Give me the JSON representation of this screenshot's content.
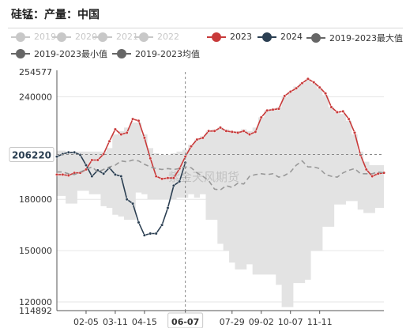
{
  "title": "硅锰：产量：中国",
  "watermark": "紫金天风期货",
  "legend": [
    {
      "label": "2019",
      "color": "#c8c8c8",
      "line": "#c8c8c8",
      "off": true
    },
    {
      "label": "2020",
      "color": "#c8c8c8",
      "line": "#c8c8c8",
      "off": true
    },
    {
      "label": "2021",
      "color": "#c8c8c8",
      "line": "#c8c8c8",
      "off": true
    },
    {
      "label": "2022",
      "color": "#c8c8c8",
      "line": "#c8c8c8",
      "off": true
    },
    {
      "label": "2023",
      "color": "#c83a3a",
      "line": "#c83a3a",
      "off": false
    },
    {
      "label": "2024",
      "color": "#2b3f52",
      "line": "#2b3f52",
      "off": false
    },
    {
      "label": "2019-2023最大值",
      "color": "#666666",
      "line": "#666666",
      "off": false
    },
    {
      "label": "2019-2023最小值",
      "color": "#666666",
      "line": "#666666",
      "off": false
    },
    {
      "label": "2019-2023均值",
      "color": "#666666",
      "line": "#666666",
      "off": false
    }
  ],
  "chart_data": {
    "type": "line",
    "y_min": 114892,
    "y_max": 254577,
    "y_ticks": [
      120000,
      150000,
      180000,
      240000
    ],
    "y_special_labels": [
      "254577",
      "114892"
    ],
    "x_ticks": [
      "02-05",
      "03-11",
      "04-15",
      "06-07",
      "07-29",
      "09-02",
      "10-07",
      "11-11"
    ],
    "x_tick_weeks": [
      5,
      10,
      15,
      22,
      30,
      35,
      40,
      45
    ],
    "x_highlight": "06-07",
    "x_crosshair_week": 22,
    "crosshair_value_label": "206220",
    "crosshair_value": 206220,
    "weeks": 52,
    "series": [
      {
        "name": "2023",
        "color": "#c83a3a",
        "values": [
          194500,
          194500,
          194000,
          195500,
          195500,
          197500,
          203000,
          203000,
          206500,
          214000,
          221000,
          218000,
          219000,
          227000,
          226000,
          216000,
          204000,
          193500,
          192000,
          192500,
          192500,
          198000,
          205000,
          211000,
          215000,
          216000,
          220000,
          220000,
          222000,
          220000,
          219500,
          219000,
          220000,
          218000,
          219500,
          228000,
          232000,
          232500,
          233000,
          240500,
          243000,
          245000,
          248000,
          250500,
          248500,
          245500,
          242000,
          234000,
          231000,
          231500,
          227000,
          219000,
          206000,
          197500,
          193500,
          195000,
          195500
        ]
      },
      {
        "name": "2024",
        "color": "#2b3f52",
        "values": [
          205000,
          206500,
          207500,
          207500,
          206000,
          200000,
          193500,
          197000,
          195000,
          198500,
          194500,
          193500,
          180000,
          177500,
          166500,
          159000,
          160000,
          160000,
          165000,
          175000,
          188000,
          190500,
          201500
        ]
      },
      {
        "name": "2019-2023均值",
        "color": "#999999",
        "values": [
          196000,
          196000,
          195000,
          194500,
          196000,
          197500,
          199000,
          196000,
          197500,
          199000,
          200000,
          202500,
          202000,
          203000,
          202500,
          200500,
          199000,
          198000,
          197500,
          198000,
          197500,
          198000,
          199000,
          198500,
          195500,
          193500,
          191000,
          186000,
          185500,
          188000,
          187000,
          189500,
          189000,
          193500,
          194500,
          195000,
          194500,
          195000,
          193000,
          194000,
          196000,
          200000,
          202500,
          199000,
          199000,
          198000,
          194500,
          193500,
          193000,
          195500,
          197000,
          198000,
          195000,
          195000,
          195000,
          196000,
          195500
        ]
      }
    ],
    "band_max": [
      208500,
      208500,
      208000,
      208000,
      208000,
      208000,
      208000,
      208000,
      208000,
      210000,
      218000,
      220000,
      222000,
      225000,
      225000,
      218000,
      210000,
      207000,
      206000,
      206000,
      207000,
      208000,
      209000,
      212000,
      215000,
      217000,
      220000,
      221000,
      222000,
      221000,
      220000,
      220000,
      221000,
      220000,
      222000,
      228000,
      232000,
      233000,
      234000,
      240000,
      243000,
      246000,
      248000,
      250000,
      248000,
      245000,
      241000,
      234000,
      231000,
      230000,
      226000,
      218000,
      208000,
      202000,
      200000,
      200000,
      200000
    ],
    "band_min": [
      182000,
      182000,
      177500,
      177500,
      185000,
      185000,
      183000,
      183000,
      176000,
      175000,
      171000,
      170000,
      168000,
      168000,
      184000,
      183000,
      180000,
      180000,
      180000,
      180000,
      180000,
      181000,
      181000,
      183000,
      181000,
      183000,
      168000,
      168000,
      154000,
      150000,
      143000,
      139000,
      139000,
      142000,
      136000,
      136000,
      136000,
      136000,
      130000,
      117000,
      117000,
      131000,
      131000,
      133000,
      150000,
      150000,
      164000,
      164000,
      177000,
      177000,
      179000,
      179000,
      174000,
      172000,
      172000,
      175000,
      175000
    ]
  }
}
